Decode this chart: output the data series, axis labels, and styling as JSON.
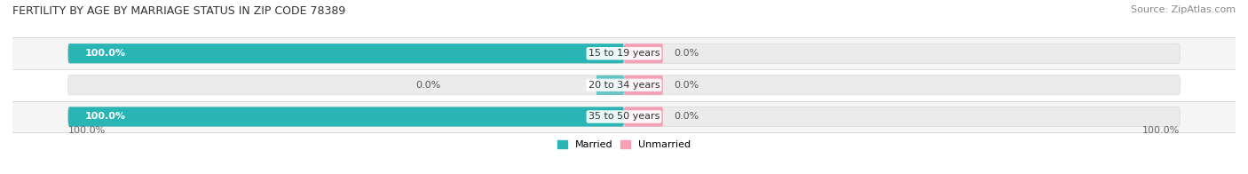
{
  "title": "FERTILITY BY AGE BY MARRIAGE STATUS IN ZIP CODE 78389",
  "source": "Source: ZipAtlas.com",
  "categories": [
    "15 to 19 years",
    "20 to 34 years",
    "35 to 50 years"
  ],
  "married_values": [
    100.0,
    0.0,
    100.0
  ],
  "unmarried_values": [
    0.0,
    0.0,
    0.0
  ],
  "married_color": "#2ab5b5",
  "unmarried_color": "#f4a0b5",
  "bar_bg_color": "#ebebeb",
  "bar_border_color": "#d8d8d8",
  "title_fontsize": 9,
  "source_fontsize": 8,
  "bar_label_fontsize": 8,
  "cat_label_fontsize": 8,
  "legend_fontsize": 8,
  "tick_fontsize": 8,
  "background_color": "#ffffff",
  "row_alt_color": "#f5f5f5",
  "row_main_color": "#ffffff"
}
